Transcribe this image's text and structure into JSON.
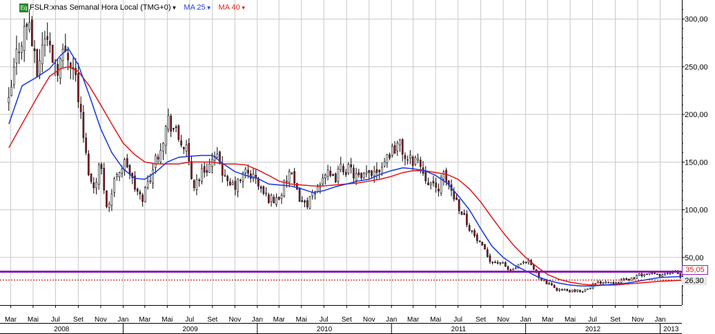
{
  "legend": {
    "badge": "Eq",
    "symbol": "FSLR:xnas Semanal Hora Local (TMG+0)",
    "ma_fast": "MA 25",
    "ma_slow": "MA 40"
  },
  "colors": {
    "background": "#ffffff",
    "grid": "#c8c8c8",
    "candle_up": "#ffffff",
    "candle_down": "#a01e2a",
    "candle_outline": "#000000",
    "ma_fast": "#1f3fe0",
    "ma_slow": "#e02020",
    "level_line": "#8a1ab8",
    "dotted_line": "#d02020"
  },
  "chart_data": {
    "type": "candlestick",
    "title": "",
    "xlabel": "",
    "ylabel": "",
    "ylim": [
      0,
      320
    ],
    "y_ticks": [
      "50,00",
      "100,00",
      "150,00",
      "200,00",
      "250,00",
      "300,00"
    ],
    "y_tick_values": [
      50,
      100,
      150,
      200,
      250,
      300
    ],
    "x_month_ticks": [
      "Mar",
      "Mai",
      "Jul",
      "Set",
      "Nov",
      "Jan",
      "Mar",
      "Mai",
      "Jul",
      "Set",
      "Nov",
      "Jan",
      "Mar",
      "Mai",
      "Jul",
      "Set",
      "Nov",
      "Jan",
      "Mar",
      "Mai",
      "Jul",
      "Set",
      "Nov",
      "Jan",
      "Mar",
      "Mai",
      "Jul",
      "Set",
      "Nov",
      "Jan"
    ],
    "x_years": [
      "2008",
      "2009",
      "2010",
      "2011",
      "2012",
      "2013"
    ],
    "x_start": "2008-02",
    "x_end": "2013-03",
    "close_path": [
      [
        "2008-02-25",
        210
      ],
      [
        "2008-03-20",
        270
      ],
      [
        "2008-04-20",
        300
      ],
      [
        "2008-05-10",
        240
      ],
      [
        "2008-06-01",
        285
      ],
      [
        "2008-07-05",
        250
      ],
      [
        "2008-08-01",
        270
      ],
      [
        "2008-08-25",
        240
      ],
      [
        "2008-09-20",
        160
      ],
      [
        "2008-10-10",
        120
      ],
      [
        "2008-10-30",
        150
      ],
      [
        "2008-11-20",
        100
      ],
      [
        "2008-12-15",
        140
      ],
      [
        "2009-01-10",
        150
      ],
      [
        "2009-01-30",
        125
      ],
      [
        "2009-02-20",
        110
      ],
      [
        "2009-03-15",
        135
      ],
      [
        "2009-04-10",
        165
      ],
      [
        "2009-05-05",
        195
      ],
      [
        "2009-05-30",
        175
      ],
      [
        "2009-06-20",
        165
      ],
      [
        "2009-07-10",
        125
      ],
      [
        "2009-08-05",
        140
      ],
      [
        "2009-08-30",
        150
      ],
      [
        "2009-09-20",
        152
      ],
      [
        "2009-10-10",
        125
      ],
      [
        "2009-11-05",
        125
      ],
      [
        "2009-12-01",
        140
      ],
      [
        "2009-12-25",
        133
      ],
      [
        "2010-01-20",
        115
      ],
      [
        "2010-02-15",
        110
      ],
      [
        "2010-03-05",
        115
      ],
      [
        "2010-03-30",
        140
      ],
      [
        "2010-04-15",
        120
      ],
      [
        "2010-05-10",
        105
      ],
      [
        "2010-06-05",
        115
      ],
      [
        "2010-07-01",
        140
      ],
      [
        "2010-07-25",
        130
      ],
      [
        "2010-08-20",
        145
      ],
      [
        "2010-09-15",
        140
      ],
      [
        "2010-10-10",
        130
      ],
      [
        "2010-11-05",
        140
      ],
      [
        "2010-12-01",
        145
      ],
      [
        "2010-12-25",
        160
      ],
      [
        "2011-01-20",
        170
      ],
      [
        "2011-02-15",
        150
      ],
      [
        "2011-03-10",
        155
      ],
      [
        "2011-04-05",
        135
      ],
      [
        "2011-04-30",
        120
      ],
      [
        "2011-05-25",
        135
      ],
      [
        "2011-06-20",
        115
      ],
      [
        "2011-07-15",
        95
      ],
      [
        "2011-08-10",
        75
      ],
      [
        "2011-09-05",
        60
      ],
      [
        "2011-10-01",
        45
      ],
      [
        "2011-10-25",
        45
      ],
      [
        "2011-11-20",
        35
      ],
      [
        "2011-12-15",
        42
      ],
      [
        "2012-01-10",
        45
      ],
      [
        "2012-02-05",
        30
      ],
      [
        "2012-03-01",
        22
      ],
      [
        "2012-03-25",
        17
      ],
      [
        "2012-04-20",
        15
      ],
      [
        "2012-05-15",
        14
      ],
      [
        "2012-06-10",
        16
      ],
      [
        "2012-07-05",
        22
      ],
      [
        "2012-08-01",
        25
      ],
      [
        "2012-08-25",
        24
      ],
      [
        "2012-09-20",
        26
      ],
      [
        "2012-10-15",
        28
      ],
      [
        "2012-11-10",
        32
      ],
      [
        "2012-12-05",
        33
      ],
      [
        "2013-01-01",
        31
      ],
      [
        "2013-01-25",
        33
      ],
      [
        "2013-02-15",
        35
      ],
      [
        "2013-02-28",
        26.3
      ]
    ],
    "ma_25": [
      [
        "2008-02-25",
        190
      ],
      [
        "2008-04-01",
        230
      ],
      [
        "2008-05-15",
        240
      ],
      [
        "2008-06-15",
        248
      ],
      [
        "2008-07-15",
        262
      ],
      [
        "2008-08-05",
        269
      ],
      [
        "2008-09-01",
        252
      ],
      [
        "2008-10-01",
        220
      ],
      [
        "2008-11-01",
        185
      ],
      [
        "2008-12-01",
        160
      ],
      [
        "2009-01-01",
        143
      ],
      [
        "2009-02-01",
        133
      ],
      [
        "2009-03-01",
        132
      ],
      [
        "2009-04-01",
        140
      ],
      [
        "2009-05-01",
        150
      ],
      [
        "2009-06-01",
        155
      ],
      [
        "2009-07-01",
        156
      ],
      [
        "2009-08-01",
        157
      ],
      [
        "2009-09-01",
        157
      ],
      [
        "2009-10-01",
        148
      ],
      [
        "2009-11-01",
        140
      ],
      [
        "2009-12-01",
        136
      ],
      [
        "2010-01-01",
        133
      ],
      [
        "2010-02-01",
        127
      ],
      [
        "2010-03-01",
        126
      ],
      [
        "2010-04-01",
        125
      ],
      [
        "2010-05-01",
        122
      ],
      [
        "2010-06-01",
        118
      ],
      [
        "2010-07-01",
        120
      ],
      [
        "2010-08-01",
        124
      ],
      [
        "2010-09-01",
        127
      ],
      [
        "2010-10-01",
        130
      ],
      [
        "2010-11-01",
        132
      ],
      [
        "2010-12-01",
        137
      ],
      [
        "2011-01-01",
        141
      ],
      [
        "2011-02-01",
        144
      ],
      [
        "2011-03-01",
        143
      ],
      [
        "2011-04-01",
        141
      ],
      [
        "2011-05-01",
        136
      ],
      [
        "2011-06-01",
        128
      ],
      [
        "2011-07-01",
        115
      ],
      [
        "2011-08-01",
        100
      ],
      [
        "2011-09-01",
        80
      ],
      [
        "2011-10-01",
        62
      ],
      [
        "2011-11-01",
        50
      ],
      [
        "2011-12-01",
        42
      ],
      [
        "2012-01-01",
        36
      ],
      [
        "2012-02-01",
        30
      ],
      [
        "2012-03-01",
        26
      ],
      [
        "2012-04-01",
        23
      ],
      [
        "2012-05-01",
        21
      ],
      [
        "2012-06-01",
        20
      ],
      [
        "2012-07-01",
        20
      ],
      [
        "2012-08-01",
        21
      ],
      [
        "2012-09-01",
        22
      ],
      [
        "2012-10-01",
        23
      ],
      [
        "2012-11-01",
        25
      ],
      [
        "2012-12-01",
        27
      ],
      [
        "2013-01-01",
        29
      ],
      [
        "2013-02-28",
        30
      ]
    ],
    "ma_40": [
      [
        "2008-02-25",
        165
      ],
      [
        "2008-04-01",
        190
      ],
      [
        "2008-05-15",
        220
      ],
      [
        "2008-06-15",
        240
      ],
      [
        "2008-07-15",
        248
      ],
      [
        "2008-08-05",
        250
      ],
      [
        "2008-09-01",
        245
      ],
      [
        "2008-10-01",
        230
      ],
      [
        "2008-11-01",
        210
      ],
      [
        "2008-12-01",
        190
      ],
      [
        "2009-01-01",
        170
      ],
      [
        "2009-02-01",
        158
      ],
      [
        "2009-03-01",
        150
      ],
      [
        "2009-04-01",
        148
      ],
      [
        "2009-05-01",
        148
      ],
      [
        "2009-06-01",
        148
      ],
      [
        "2009-07-01",
        150
      ],
      [
        "2009-08-01",
        150
      ],
      [
        "2009-09-01",
        150
      ],
      [
        "2009-10-01",
        148
      ],
      [
        "2009-11-01",
        148
      ],
      [
        "2009-12-01",
        147
      ],
      [
        "2010-01-01",
        142
      ],
      [
        "2010-02-01",
        136
      ],
      [
        "2010-03-01",
        130
      ],
      [
        "2010-04-01",
        127
      ],
      [
        "2010-05-01",
        126
      ],
      [
        "2010-06-01",
        125
      ],
      [
        "2010-07-01",
        125
      ],
      [
        "2010-08-01",
        126
      ],
      [
        "2010-09-01",
        127
      ],
      [
        "2010-10-01",
        128
      ],
      [
        "2010-11-01",
        130
      ],
      [
        "2010-12-01",
        132
      ],
      [
        "2011-01-01",
        135
      ],
      [
        "2011-02-01",
        139
      ],
      [
        "2011-03-01",
        141
      ],
      [
        "2011-04-01",
        141
      ],
      [
        "2011-05-01",
        139
      ],
      [
        "2011-06-01",
        137
      ],
      [
        "2011-07-01",
        132
      ],
      [
        "2011-08-01",
        122
      ],
      [
        "2011-09-01",
        108
      ],
      [
        "2011-10-01",
        92
      ],
      [
        "2011-11-01",
        76
      ],
      [
        "2011-12-01",
        62
      ],
      [
        "2012-01-01",
        50
      ],
      [
        "2012-02-01",
        40
      ],
      [
        "2012-03-01",
        32
      ],
      [
        "2012-04-01",
        27
      ],
      [
        "2012-05-01",
        24
      ],
      [
        "2012-06-01",
        22
      ],
      [
        "2012-07-01",
        21
      ],
      [
        "2012-08-01",
        21
      ],
      [
        "2012-09-01",
        21
      ],
      [
        "2012-10-01",
        22
      ],
      [
        "2012-11-01",
        23
      ],
      [
        "2012-12-01",
        24
      ],
      [
        "2013-01-01",
        25
      ],
      [
        "2013-02-28",
        26
      ]
    ],
    "horizontal_lines": [
      {
        "value": 35.05,
        "label": "35,05",
        "style": "solid"
      },
      {
        "value": 26.3,
        "label": "26,30",
        "style": "dotted"
      }
    ]
  }
}
